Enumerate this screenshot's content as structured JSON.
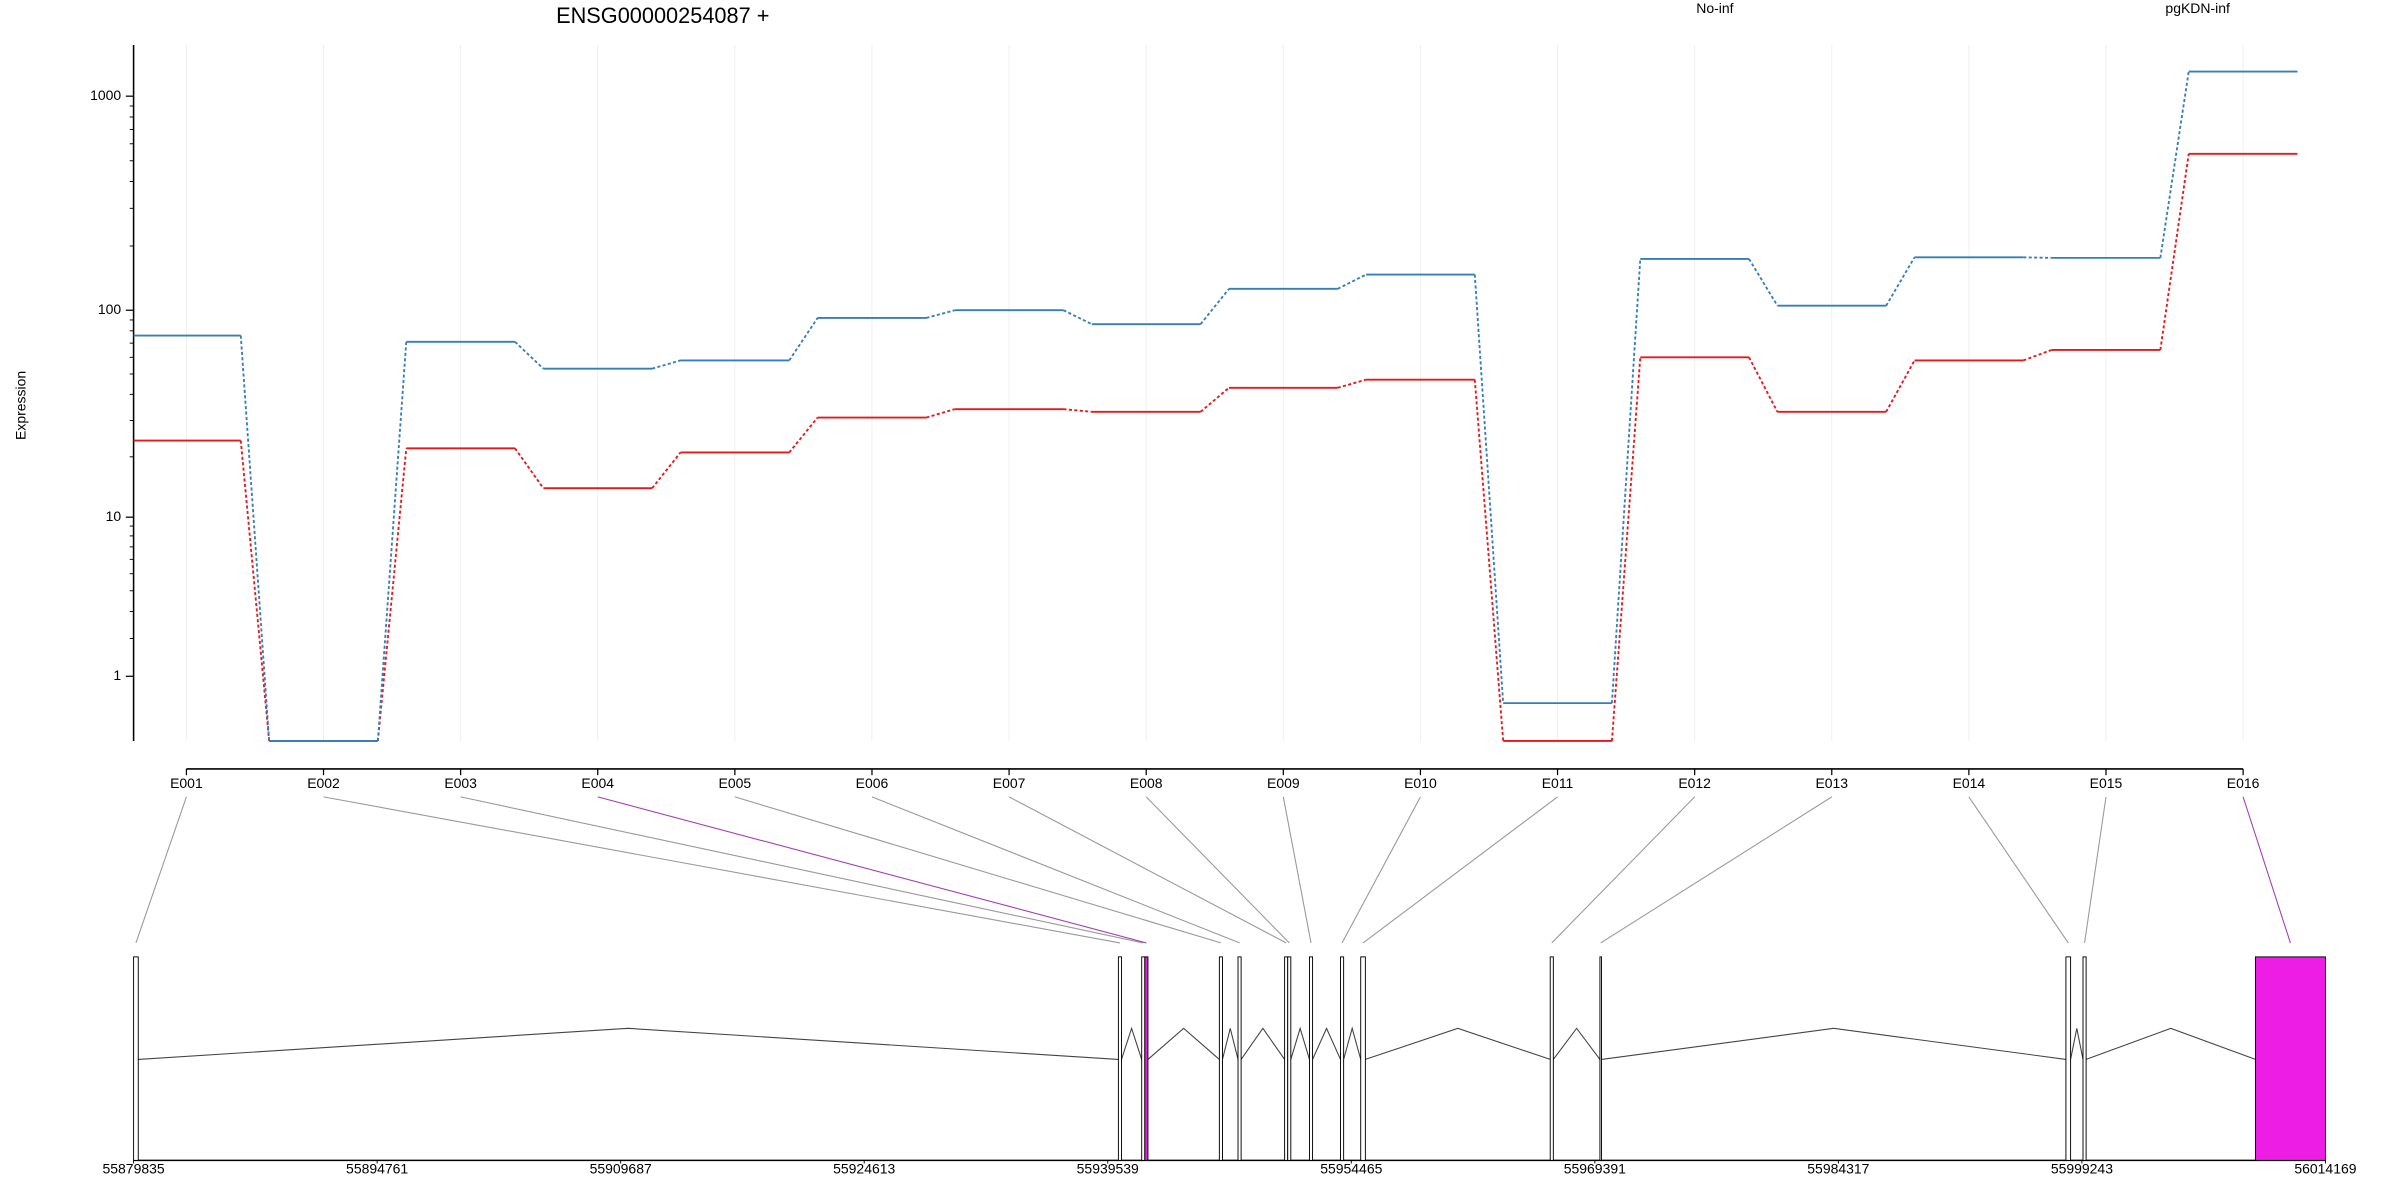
{
  "chart_data": {
    "type": "line",
    "title": "ENSG00000254087 +",
    "y_label": "Expression",
    "categories": [
      "E001",
      "E002",
      "E003",
      "E004",
      "E005",
      "E006",
      "E007",
      "E008",
      "E009",
      "E010",
      "E011",
      "E012",
      "E013",
      "E014",
      "E015",
      "E016"
    ],
    "series": [
      {
        "name": "No-inf",
        "color": "#e31a1c",
        "values": [
          24,
          0,
          22,
          14,
          21,
          31,
          34,
          33,
          43,
          47,
          0,
          60,
          33,
          58,
          65,
          539
        ]
      },
      {
        "name": "pgKDN-inf",
        "color": "#377eb8",
        "values": [
          76,
          0,
          71,
          53,
          58,
          92,
          100,
          86,
          126,
          147,
          0.5,
          174,
          105,
          177,
          176,
          1302
        ]
      }
    ],
    "ylim": [
      0,
      1730
    ],
    "yticks": [
      1,
      10,
      100,
      1000
    ],
    "log_scale": true,
    "grid": true,
    "gene_model": {
      "xlim": [
        55879835,
        56014169
      ],
      "xticks": [
        55879835,
        55894761,
        55909687,
        55924613,
        55939539,
        55954465,
        55969391,
        55984317,
        55999243,
        56014169
      ],
      "exon_start": [
        55879835,
        55940192,
        55941620,
        55941811,
        55946380,
        55947523,
        55950379,
        55950569,
        55951902,
        55953806,
        55955043,
        55966658,
        55969704,
        55998264,
        55999311,
        56009878
      ],
      "exon_end": [
        55880121,
        55940382,
        55941811,
        55942002,
        55946571,
        55947713,
        55950569,
        55950759,
        55952092,
        55953996,
        55955329,
        55966848,
        55969799,
        55998550,
        55999501,
        56014169
      ],
      "highlight": [
        false,
        false,
        false,
        true,
        false,
        false,
        false,
        false,
        false,
        false,
        false,
        false,
        false,
        false,
        false,
        true
      ],
      "highlight_color": "#ee1de6"
    }
  }
}
